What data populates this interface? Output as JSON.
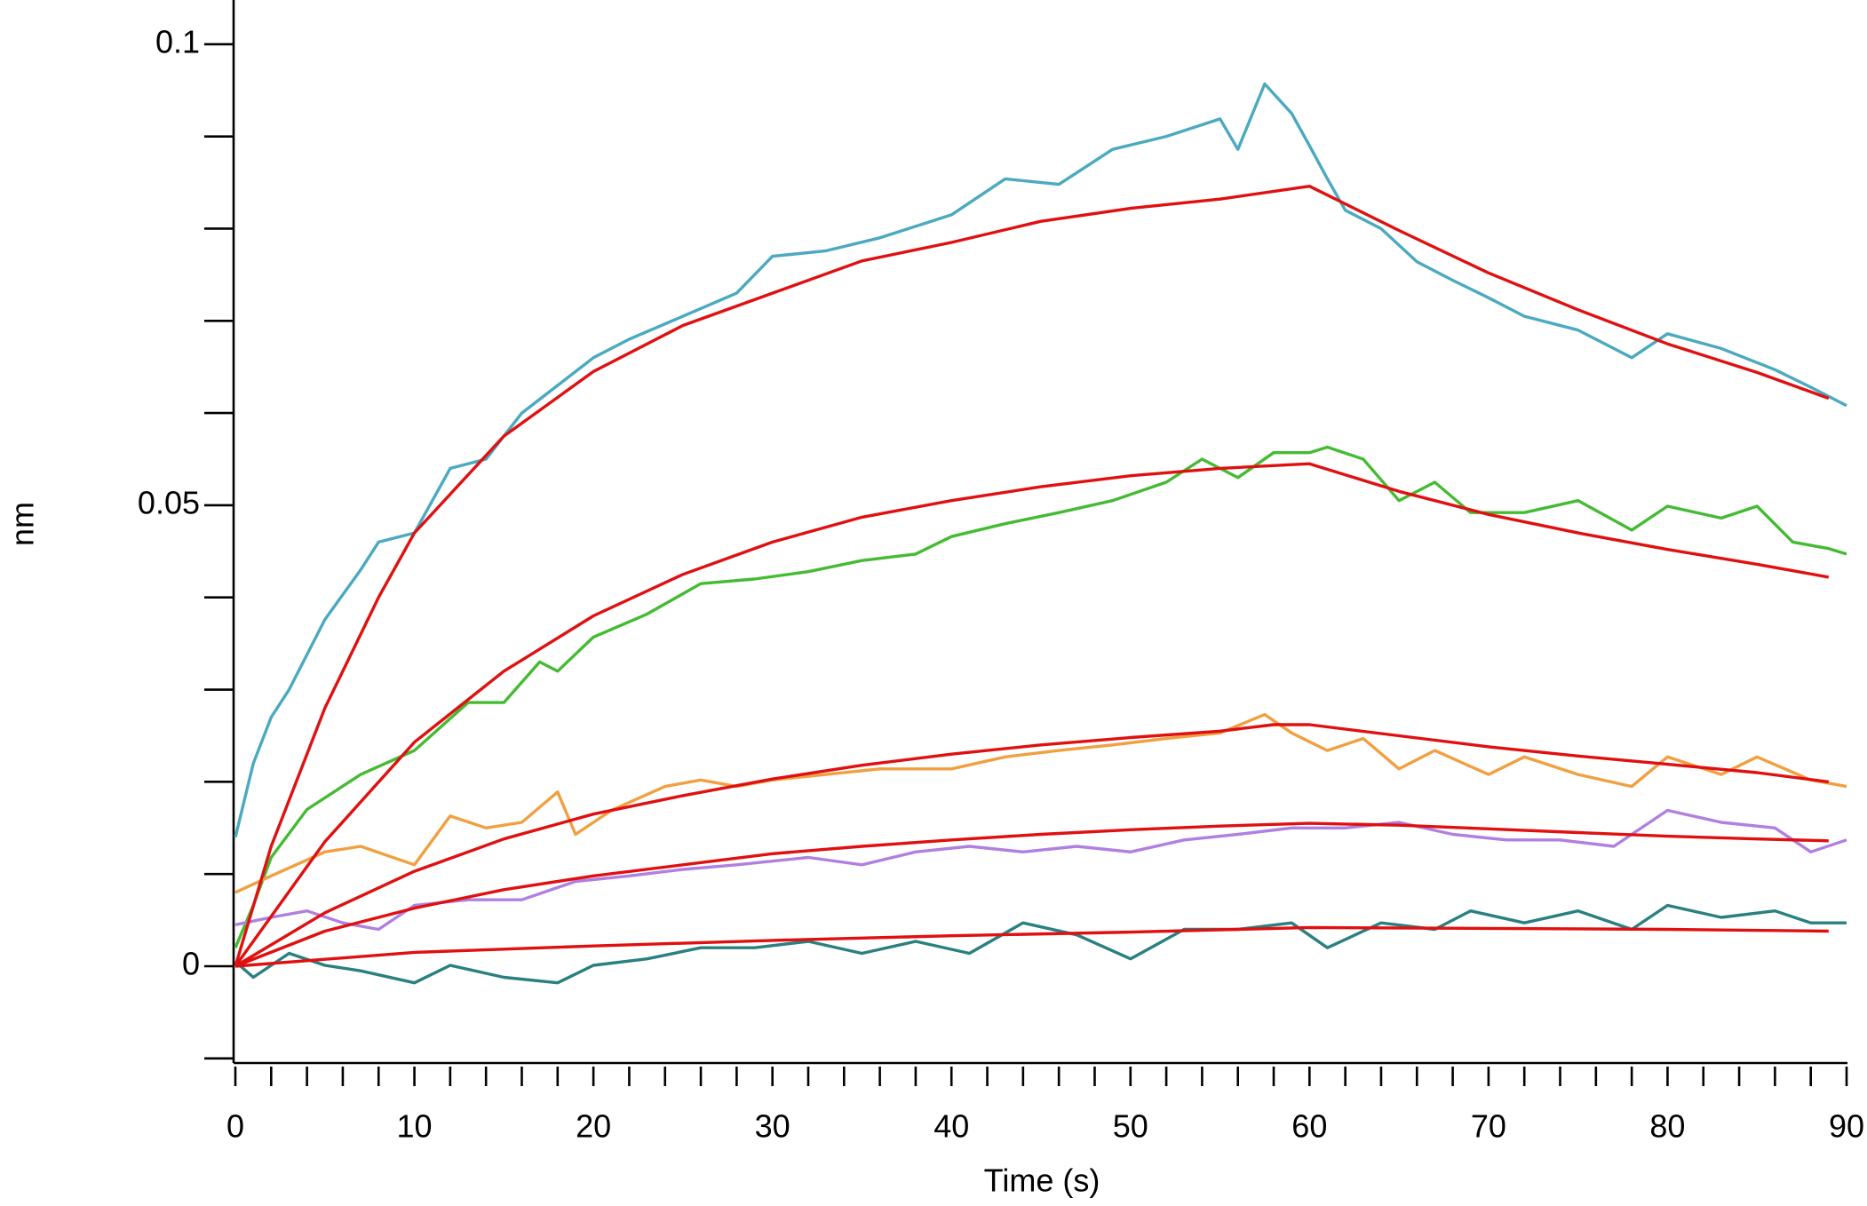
{
  "chart_data": {
    "type": "line",
    "xlabel": "Time (s)",
    "ylabel": "nm",
    "xlim": [
      0,
      90
    ],
    "ylim": [
      -0.0105,
      0.1048
    ],
    "xticks": [
      0,
      10,
      20,
      30,
      40,
      50,
      60,
      70,
      80,
      90
    ],
    "xminorticks": [
      2,
      4,
      6,
      8,
      12,
      14,
      16,
      18,
      22,
      24,
      26,
      28,
      32,
      34,
      36,
      38,
      42,
      44,
      46,
      48,
      52,
      54,
      56,
      58,
      62,
      64,
      66,
      68,
      72,
      74,
      76,
      78,
      82,
      84,
      86,
      88
    ],
    "yticks": [
      0,
      0.05,
      0.1
    ],
    "yminorticks": [
      -0.01,
      0.01,
      0.02,
      0.03,
      0.04,
      0.06,
      0.07,
      0.08,
      0.09
    ],
    "series": [
      {
        "color": "#4ba9c0",
        "x": [
          0,
          1,
          2,
          3,
          5,
          7,
          8,
          10,
          12,
          14,
          16,
          18,
          20,
          22,
          25,
          28,
          30,
          33,
          36,
          40,
          43,
          46,
          49,
          52,
          55,
          56,
          57.5,
          59,
          60,
          61,
          62,
          64,
          66,
          68,
          70,
          72,
          75,
          78,
          80,
          83,
          86,
          88,
          90
        ],
        "values": [
          0.014,
          0.022,
          0.027,
          0.03,
          0.0376,
          0.043,
          0.046,
          0.047,
          0.054,
          0.055,
          0.06,
          0.063,
          0.066,
          0.068,
          0.0705,
          0.073,
          0.077,
          0.0776,
          0.079,
          0.0815,
          0.0854,
          0.0848,
          0.0886,
          0.09,
          0.0919,
          0.0886,
          0.0957,
          0.0925,
          0.089,
          0.0854,
          0.082,
          0.08,
          0.0764,
          0.0744,
          0.0725,
          0.0705,
          0.069,
          0.066,
          0.0686,
          0.067,
          0.0647,
          0.0628,
          0.0608
        ]
      },
      {
        "color": "#44bb33",
        "x": [
          0,
          1,
          2,
          4,
          7,
          10,
          13,
          15,
          17,
          18,
          20,
          23,
          26,
          29,
          32,
          35,
          38,
          40,
          43,
          46,
          49,
          52,
          54,
          56,
          58,
          60,
          61,
          63,
          65,
          67,
          69,
          72,
          75,
          78,
          80,
          83,
          85,
          87,
          89,
          90
        ],
        "values": [
          0.002,
          0.0066,
          0.0118,
          0.017,
          0.0208,
          0.0234,
          0.0286,
          0.0286,
          0.033,
          0.032,
          0.0357,
          0.0382,
          0.0415,
          0.042,
          0.0428,
          0.044,
          0.0447,
          0.0466,
          0.048,
          0.0492,
          0.0505,
          0.0525,
          0.055,
          0.053,
          0.0557,
          0.0557,
          0.0563,
          0.055,
          0.0505,
          0.0525,
          0.0492,
          0.0492,
          0.0505,
          0.0473,
          0.0499,
          0.0486,
          0.0499,
          0.046,
          0.0453,
          0.0447
        ]
      },
      {
        "color": "#f0a040",
        "x": [
          0,
          2,
          5,
          7,
          10,
          12,
          14,
          16,
          18,
          19,
          21,
          24,
          26,
          28,
          30,
          33,
          36,
          40,
          43,
          46,
          49,
          52,
          55,
          57.5,
          59,
          61,
          63,
          65,
          67,
          70,
          72,
          75,
          78,
          80,
          83,
          85,
          88,
          90
        ],
        "values": [
          0.008,
          0.0098,
          0.0124,
          0.013,
          0.011,
          0.0163,
          0.015,
          0.0156,
          0.0189,
          0.0143,
          0.0169,
          0.0195,
          0.0202,
          0.0195,
          0.0202,
          0.0208,
          0.0214,
          0.0214,
          0.0227,
          0.0234,
          0.024,
          0.0247,
          0.0253,
          0.0273,
          0.0253,
          0.0234,
          0.0247,
          0.0214,
          0.0234,
          0.0208,
          0.0227,
          0.0208,
          0.0195,
          0.0227,
          0.0208,
          0.0227,
          0.0202,
          0.0195
        ]
      },
      {
        "color": "#b080e0",
        "x": [
          0,
          2,
          4,
          6,
          8,
          10,
          13,
          16,
          19,
          22,
          25,
          28,
          32,
          35,
          38,
          41,
          44,
          47,
          50,
          53,
          56,
          59,
          62,
          65,
          68,
          71,
          74,
          77,
          80,
          83,
          86,
          88,
          90
        ],
        "values": [
          0.0045,
          0.0053,
          0.006,
          0.0047,
          0.004,
          0.0066,
          0.0072,
          0.0072,
          0.0092,
          0.0098,
          0.0105,
          0.011,
          0.0118,
          0.011,
          0.0124,
          0.013,
          0.0124,
          0.013,
          0.0124,
          0.0137,
          0.0143,
          0.015,
          0.015,
          0.0156,
          0.0143,
          0.0137,
          0.0137,
          0.013,
          0.0169,
          0.0156,
          0.015,
          0.0124,
          0.0137
        ]
      },
      {
        "color": "#2a8080",
        "x": [
          0,
          1,
          3,
          5,
          7,
          10,
          12,
          15,
          18,
          20,
          23,
          26,
          29,
          32,
          35,
          38,
          41,
          44,
          47,
          50,
          53,
          56,
          59,
          61,
          64,
          67,
          69,
          72,
          75,
          78,
          80,
          83,
          86,
          88,
          90
        ],
        "values": [
          0.0005,
          -0.0012,
          0.0014,
          0.0001,
          -0.0005,
          -0.0018,
          0.0001,
          -0.0012,
          -0.0018,
          0.0001,
          0.0008,
          0.002,
          0.002,
          0.0027,
          0.0014,
          0.0027,
          0.0014,
          0.0047,
          0.0034,
          0.0008,
          0.004,
          0.004,
          0.0047,
          0.002,
          0.0047,
          0.004,
          0.006,
          0.0047,
          0.006,
          0.004,
          0.0066,
          0.0053,
          0.006,
          0.0047,
          0.0047
        ]
      },
      {
        "color": "#e01010",
        "x": [
          0,
          2,
          5,
          8,
          10,
          15,
          20,
          25,
          30,
          35,
          40,
          45,
          50,
          55,
          60,
          65,
          70,
          75,
          80,
          85,
          89
        ],
        "values": [
          0,
          0.013,
          0.028,
          0.04,
          0.047,
          0.0575,
          0.0645,
          0.0695,
          0.073,
          0.0765,
          0.0785,
          0.0808,
          0.0822,
          0.0832,
          0.0846,
          0.0798,
          0.0752,
          0.0712,
          0.0675,
          0.0644,
          0.0616
        ]
      },
      {
        "color": "#e01010",
        "x": [
          0,
          5,
          10,
          15,
          20,
          25,
          30,
          35,
          40,
          45,
          50,
          55,
          60,
          65,
          70,
          75,
          80,
          85,
          89
        ],
        "values": [
          0,
          0.0135,
          0.0243,
          0.032,
          0.038,
          0.0425,
          0.046,
          0.0487,
          0.0505,
          0.052,
          0.0532,
          0.054,
          0.0545,
          0.0515,
          0.049,
          0.047,
          0.0452,
          0.0436,
          0.0422
        ]
      },
      {
        "color": "#e01010",
        "x": [
          0,
          5,
          10,
          15,
          20,
          25,
          30,
          35,
          40,
          45,
          50,
          55,
          58,
          60,
          65,
          70,
          75,
          80,
          85,
          89
        ],
        "values": [
          0,
          0.0058,
          0.0103,
          0.0138,
          0.0165,
          0.0185,
          0.0203,
          0.0218,
          0.023,
          0.024,
          0.0248,
          0.0255,
          0.0262,
          0.0262,
          0.025,
          0.0238,
          0.0228,
          0.0219,
          0.021,
          0.02
        ]
      },
      {
        "color": "#e01010",
        "x": [
          0,
          5,
          10,
          15,
          20,
          25,
          30,
          35,
          40,
          45,
          50,
          55,
          60,
          65,
          70,
          75,
          80,
          85,
          89
        ],
        "values": [
          0,
          0.0038,
          0.0063,
          0.0083,
          0.0098,
          0.011,
          0.0122,
          0.013,
          0.0137,
          0.0143,
          0.0148,
          0.0152,
          0.0155,
          0.0153,
          0.0149,
          0.0145,
          0.0141,
          0.0138,
          0.0136
        ]
      },
      {
        "color": "#e01010",
        "x": [
          0,
          10,
          20,
          30,
          40,
          50,
          60,
          70,
          80,
          89
        ],
        "values": [
          0,
          0.0015,
          0.0022,
          0.0028,
          0.0033,
          0.0037,
          0.0042,
          0.0041,
          0.004,
          0.0038
        ]
      }
    ]
  }
}
